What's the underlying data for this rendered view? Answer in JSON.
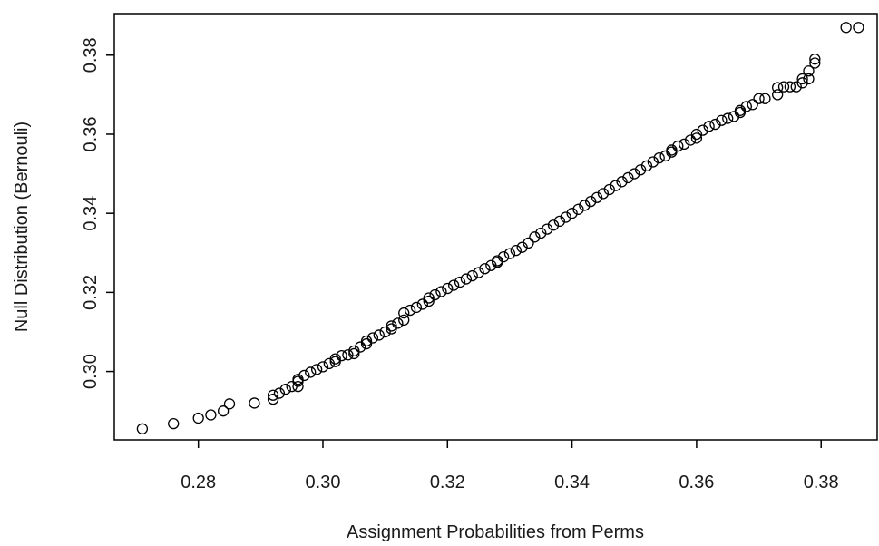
{
  "chart_data": {
    "type": "scatter",
    "title": "",
    "xlabel": "Assignment Probabilities from Perms",
    "ylabel": "Null Distribution (Bernouli)",
    "xlim": [
      0.2665,
      0.389
    ],
    "ylim": [
      0.2827,
      0.3905
    ],
    "grid": false,
    "legend": "none",
    "xticks": [
      {
        "value": 0.28,
        "label": "0.28"
      },
      {
        "value": 0.3,
        "label": "0.30"
      },
      {
        "value": 0.32,
        "label": "0.32"
      },
      {
        "value": 0.34,
        "label": "0.34"
      },
      {
        "value": 0.36,
        "label": "0.36"
      },
      {
        "value": 0.38,
        "label": "0.38"
      }
    ],
    "yticks": [
      {
        "value": 0.3,
        "label": "0.30"
      },
      {
        "value": 0.32,
        "label": "0.32"
      },
      {
        "value": 0.34,
        "label": "0.34"
      },
      {
        "value": 0.36,
        "label": "0.36"
      },
      {
        "value": 0.38,
        "label": "0.38"
      }
    ],
    "series": [
      {
        "x": [
          0.271,
          0.276,
          0.28,
          0.282,
          0.284,
          0.285,
          0.289,
          0.292,
          0.292,
          0.293,
          0.294,
          0.295,
          0.296,
          0.296,
          0.296,
          0.297,
          0.298,
          0.299,
          0.3,
          0.301,
          0.302,
          0.302,
          0.303,
          0.304,
          0.305,
          0.305,
          0.306,
          0.307,
          0.307,
          0.308,
          0.309,
          0.31,
          0.311,
          0.311,
          0.312,
          0.313,
          0.313,
          0.314,
          0.315,
          0.316,
          0.317,
          0.317,
          0.318,
          0.319,
          0.32,
          0.321,
          0.322,
          0.323,
          0.324,
          0.325,
          0.326,
          0.327,
          0.328,
          0.328,
          0.329,
          0.33,
          0.331,
          0.332,
          0.333,
          0.334,
          0.335,
          0.336,
          0.337,
          0.338,
          0.339,
          0.34,
          0.341,
          0.342,
          0.343,
          0.344,
          0.345,
          0.346,
          0.347,
          0.348,
          0.349,
          0.35,
          0.351,
          0.352,
          0.353,
          0.354,
          0.355,
          0.356,
          0.356,
          0.357,
          0.358,
          0.359,
          0.36,
          0.36,
          0.361,
          0.362,
          0.363,
          0.364,
          0.365,
          0.366,
          0.367,
          0.367,
          0.368,
          0.369,
          0.37,
          0.371,
          0.373,
          0.373,
          0.374,
          0.375,
          0.376,
          0.377,
          0.377,
          0.378,
          0.378,
          0.379,
          0.379,
          0.384,
          0.386
        ],
        "y": [
          0.2855,
          0.2868,
          0.2882,
          0.289,
          0.29,
          0.2918,
          0.292,
          0.293,
          0.294,
          0.2945,
          0.2955,
          0.2962,
          0.2962,
          0.2975,
          0.298,
          0.299,
          0.2998,
          0.3005,
          0.3012,
          0.302,
          0.3025,
          0.3032,
          0.304,
          0.3042,
          0.3045,
          0.3052,
          0.3062,
          0.307,
          0.3077,
          0.3085,
          0.3092,
          0.31,
          0.3108,
          0.3115,
          0.3122,
          0.313,
          0.3148,
          0.3155,
          0.3162,
          0.317,
          0.3178,
          0.3186,
          0.3194,
          0.3202,
          0.321,
          0.3218,
          0.3226,
          0.3234,
          0.3242,
          0.325,
          0.326,
          0.3268,
          0.3276,
          0.328,
          0.329,
          0.3298,
          0.3306,
          0.3314,
          0.3325,
          0.334,
          0.335,
          0.336,
          0.337,
          0.338,
          0.339,
          0.34,
          0.341,
          0.342,
          0.343,
          0.344,
          0.345,
          0.346,
          0.347,
          0.348,
          0.349,
          0.35,
          0.351,
          0.352,
          0.353,
          0.354,
          0.3545,
          0.3555,
          0.356,
          0.357,
          0.3575,
          0.3585,
          0.359,
          0.36,
          0.361,
          0.362,
          0.3625,
          0.3635,
          0.364,
          0.3645,
          0.3655,
          0.366,
          0.367,
          0.3675,
          0.369,
          0.369,
          0.37,
          0.3718,
          0.372,
          0.372,
          0.372,
          0.373,
          0.374,
          0.374,
          0.376,
          0.378,
          0.379,
          0.387,
          0.387
        ]
      }
    ],
    "marker": "open-circle",
    "colors": {
      "points": "#000000",
      "axes": "#000000",
      "text": "#1a1a1a",
      "background": "#ffffff"
    }
  }
}
